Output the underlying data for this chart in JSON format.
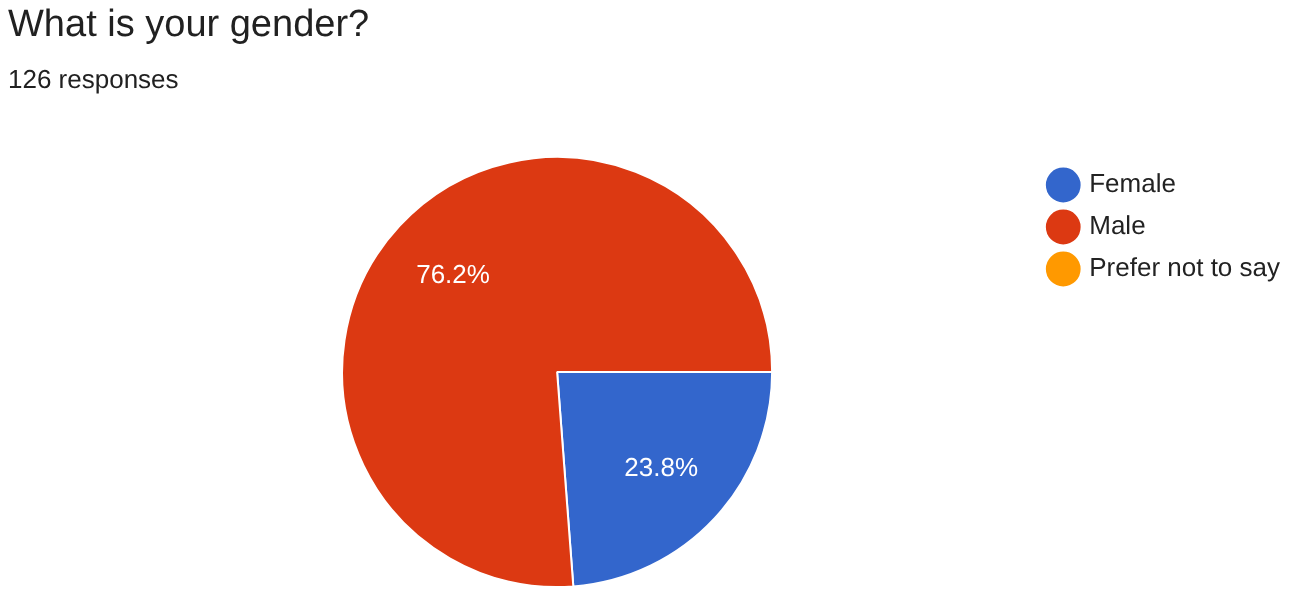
{
  "chart_data": {
    "type": "pie",
    "title": "What is your gender?",
    "subtitle": "126 responses",
    "categories": [
      "Female",
      "Male",
      "Prefer not to say"
    ],
    "values": [
      23.8,
      76.2,
      0
    ],
    "colors": [
      "#3366cc",
      "#dc3912",
      "#ff9900"
    ],
    "value_labels": [
      "23.8%",
      "76.2%",
      null
    ],
    "legend": "right"
  }
}
